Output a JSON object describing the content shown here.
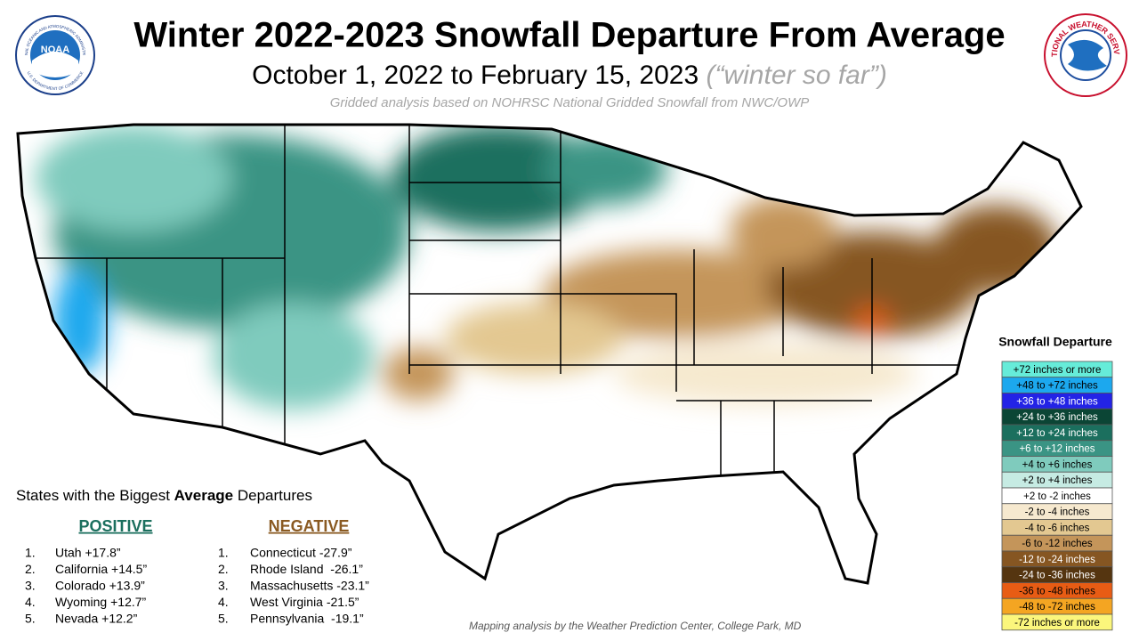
{
  "header": {
    "title": "Winter 2022-2023 Snowfall Departure From Average",
    "subtitle": "October 1, 2022 to February 15, 2023",
    "subtitle_note": "(“winter so far”)",
    "source": "Gridded analysis based on NOHRSC National Gridded Snowfall from NWC/OWP"
  },
  "logos": {
    "noaa": "NOAA",
    "noaa_ring_top": "NATIONAL OCEANIC AND ATMOSPHERIC ADMINISTRATION",
    "noaa_ring_bottom": "U.S. DEPARTMENT OF COMMERCE",
    "nws_ring": "NATIONAL WEATHER SERVICE"
  },
  "legend": {
    "title": "Snowfall  Departure",
    "items": [
      {
        "label": "+72 inches or more",
        "color": "#66ecd9"
      },
      {
        "label": "+48 to +72 inches",
        "color": "#1ca8ee"
      },
      {
        "label": "+36 to +48 inches",
        "color": "#2323e6"
      },
      {
        "label": "+24 to +36 inches",
        "color": "#0b4535"
      },
      {
        "label": "+12 to +24 inches",
        "color": "#1b6f5e"
      },
      {
        "label": "+6 to +12 inches",
        "color": "#3a9484"
      },
      {
        "label": "+4 to +6 inches",
        "color": "#7fcbbd"
      },
      {
        "label": "+2 to +4 inches",
        "color": "#c6ebe3"
      },
      {
        "label": "+2 to -2 inches",
        "color": "#ffffff"
      },
      {
        "label": "-2 to -4 inches",
        "color": "#f6e9cf"
      },
      {
        "label": "-4 to -6 inches",
        "color": "#e3c891"
      },
      {
        "label": "-6 to -12 inches",
        "color": "#c4955a"
      },
      {
        "label": "-12 to -24 inches",
        "color": "#865622"
      },
      {
        "label": "-24 to -36 inches",
        "color": "#553510"
      },
      {
        "label": "-36 to -48 inches",
        "color": "#e85c14"
      },
      {
        "label": "-48 to -72 inches",
        "color": "#f4a522"
      },
      {
        "label": "-72 inches or more",
        "color": "#fbf67c"
      }
    ]
  },
  "departures": {
    "heading_start": "States with the Biggest ",
    "heading_emphasis": "Average",
    "heading_end": " Departures",
    "positive": {
      "title": "POSITIVE",
      "color": "#1b6f5e",
      "items": [
        {
          "rank": "1.",
          "state": "Utah +17.8”"
        },
        {
          "rank": "2.",
          "state": "California +14.5”"
        },
        {
          "rank": "3.",
          "state": "Colorado +13.9”"
        },
        {
          "rank": "4.",
          "state": "Wyoming +12.7”"
        },
        {
          "rank": "5.",
          "state": "Nevada +12.2”"
        }
      ]
    },
    "negative": {
      "title": "NEGATIVE",
      "color": "#8a5a22",
      "items": [
        {
          "rank": "1.",
          "state": "Connecticut -27.9”"
        },
        {
          "rank": "2.",
          "state": "Rhode Island  -26.1”"
        },
        {
          "rank": "3.",
          "state": "Massachusetts -23.1”"
        },
        {
          "rank": "4.",
          "state": "West Virginia -21.5”"
        },
        {
          "rank": "5.",
          "state": "Pennsylvania  -19.1”"
        }
      ]
    }
  },
  "footer": {
    "credit": "Mapping analysis by the Weather Prediction Center, College Park, MD"
  }
}
